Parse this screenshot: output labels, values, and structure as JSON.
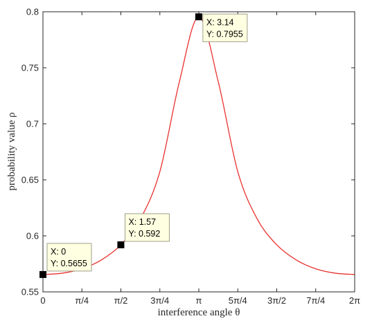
{
  "chart_data": {
    "type": "line",
    "title": "",
    "xlabel": "interference angle  θ",
    "ylabel": "probability value  ρ",
    "xlim": [
      0,
      6.2832
    ],
    "ylim": [
      0.55,
      0.8
    ],
    "x_ticks": [
      {
        "value": 0,
        "label": "0"
      },
      {
        "value": 0.7854,
        "label": "π/4"
      },
      {
        "value": 1.5708,
        "label": "π/2"
      },
      {
        "value": 2.3562,
        "label": "3π/4"
      },
      {
        "value": 3.1416,
        "label": "π"
      },
      {
        "value": 3.927,
        "label": "5π/4"
      },
      {
        "value": 4.7124,
        "label": "3π/2"
      },
      {
        "value": 5.4978,
        "label": "7π/4"
      },
      {
        "value": 6.2832,
        "label": "2π"
      }
    ],
    "y_ticks": [
      {
        "value": 0.55,
        "label": "0.55"
      },
      {
        "value": 0.6,
        "label": "0.6"
      },
      {
        "value": 0.65,
        "label": "0.65"
      },
      {
        "value": 0.7,
        "label": "0.7"
      },
      {
        "value": 0.75,
        "label": "0.75"
      },
      {
        "value": 0.8,
        "label": "0.8"
      }
    ],
    "grid": false,
    "line_color": "#e8312f",
    "series": [
      {
        "x": [
          0,
          0.3927,
          0.7854,
          1.1781,
          1.5708,
          1.9635,
          2.3562,
          2.7489,
          3.1416,
          3.5343,
          3.927,
          4.3197,
          4.7124,
          5.1051,
          5.4978,
          5.8905,
          6.2832
        ],
        "values": [
          0.5655,
          0.5667,
          0.5706,
          0.5785,
          0.592,
          0.615,
          0.6573,
          0.7374,
          0.7955,
          0.7374,
          0.6573,
          0.615,
          0.592,
          0.5785,
          0.5706,
          0.5667,
          0.5655
        ]
      }
    ],
    "datatips": [
      {
        "x": 0,
        "y": 0.5655,
        "x_text": "X: 0",
        "y_text": "Y: 0.5655"
      },
      {
        "x": 1.57,
        "y": 0.592,
        "x_text": "X: 1.57",
        "y_text": "Y: 0.592"
      },
      {
        "x": 3.14,
        "y": 0.7955,
        "x_text": "X: 3.14",
        "y_text": "Y: 0.7955"
      }
    ],
    "tip_background": "#ffffe1",
    "tip_border": "#9e9e8a"
  }
}
